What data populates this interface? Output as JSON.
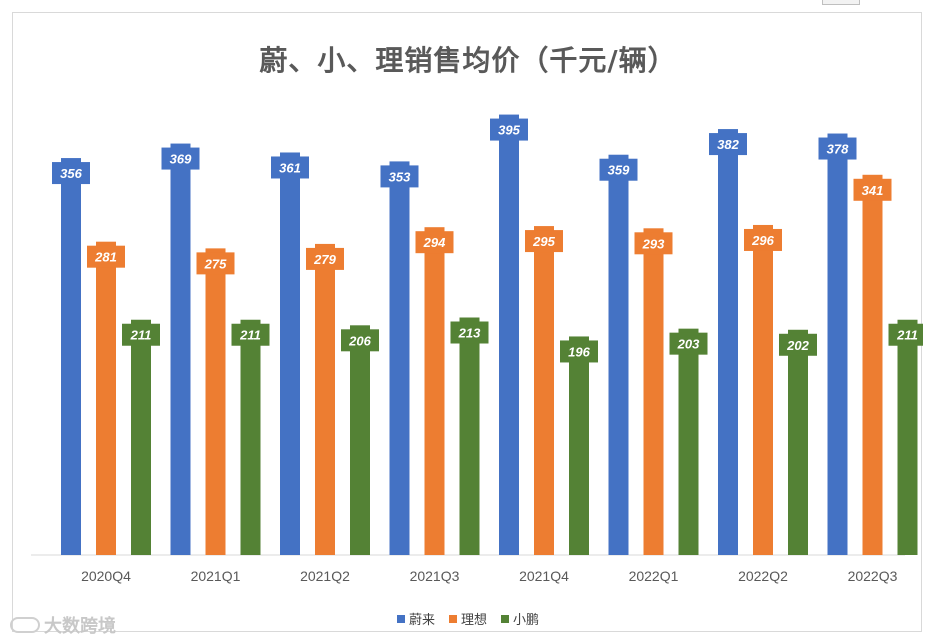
{
  "chart_data": {
    "type": "bar",
    "title": "蔚、小、理销售均价（千元/辆）",
    "xlabel": "",
    "ylabel": "",
    "ylim": [
      0,
      420
    ],
    "grid": false,
    "legend_position": "bottom",
    "categories": [
      "2020Q4",
      "2021Q1",
      "2021Q2",
      "2021Q3",
      "2021Q4",
      "2022Q1",
      "2022Q2",
      "2022Q3"
    ],
    "series": [
      {
        "name": "蔚来",
        "color": "#4472c4",
        "values": [
          356,
          369,
          361,
          353,
          395,
          359,
          382,
          378
        ]
      },
      {
        "name": "理想",
        "color": "#ed7d31",
        "values": [
          281,
          275,
          279,
          294,
          295,
          293,
          296,
          341
        ]
      },
      {
        "name": "小鹏",
        "color": "#548235",
        "values": [
          211,
          211,
          206,
          213,
          196,
          203,
          202,
          211
        ]
      }
    ]
  },
  "watermark": "大数跨境"
}
